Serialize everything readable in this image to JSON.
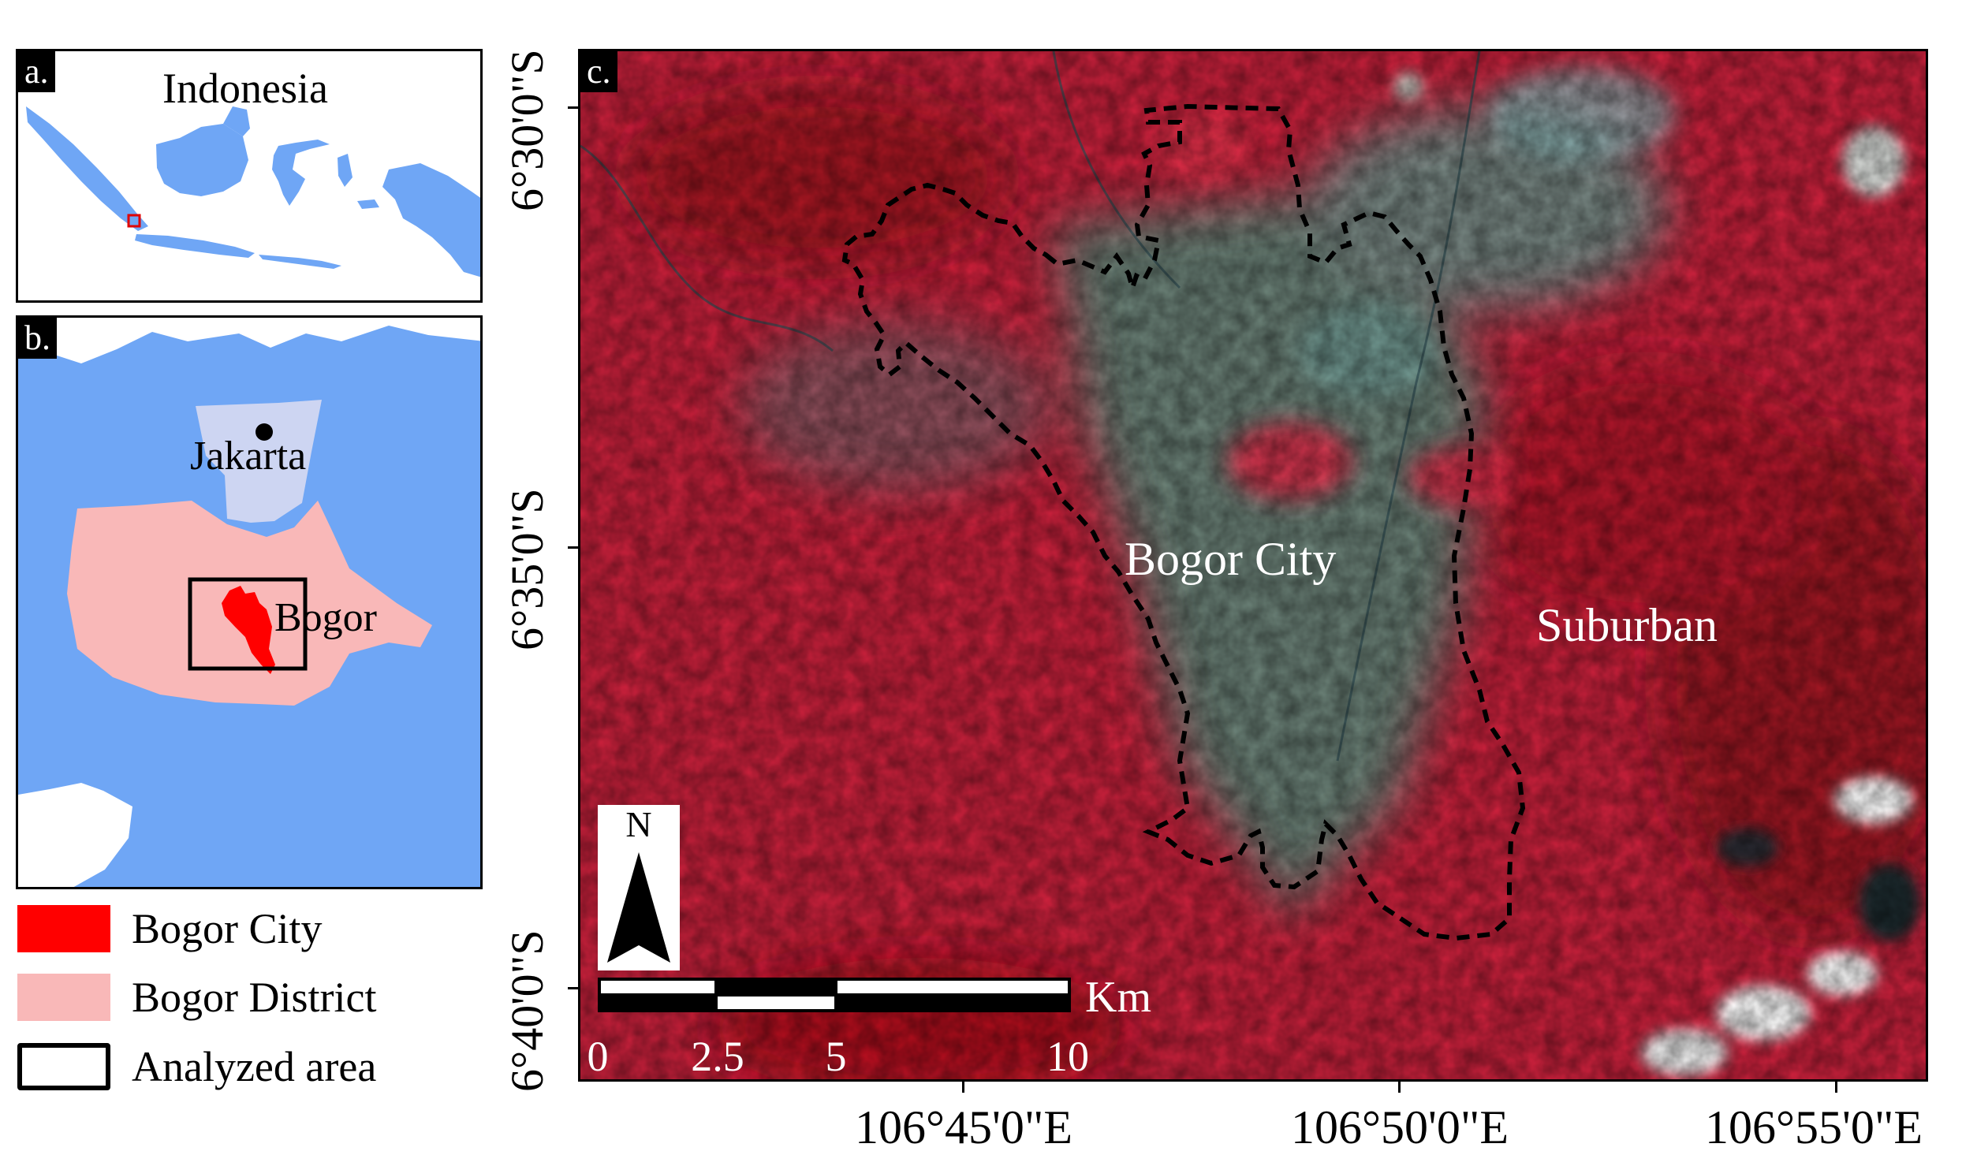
{
  "panel_a": {
    "tag": "a.",
    "title": "Indonesia"
  },
  "panel_b": {
    "tag": "b.",
    "places": {
      "jakarta": "Jakarta",
      "bogor": "Bogor"
    }
  },
  "panel_c": {
    "tag": "c.",
    "labels": {
      "city": "Bogor City",
      "suburban": "Suburban"
    },
    "north_arrow": "N",
    "scale_bar": {
      "unit": "Km",
      "ticks": [
        "0",
        "2.5",
        "5",
        "10"
      ]
    },
    "latitude_labels": [
      "6°30'0\"S",
      "6°35'0\"S",
      "6°40'0\"S"
    ],
    "longitude_labels": [
      "106°45'0\"E",
      "106°50'0\"E",
      "106°55'0\"E"
    ]
  },
  "legend": {
    "items": [
      {
        "label": "Bogor City",
        "color": "#ff0000"
      },
      {
        "label": "Bogor District",
        "color": "#f9b8b8"
      },
      {
        "label": "Analyzed area",
        "color": "#ffffff"
      }
    ]
  },
  "colors": {
    "sea": "#6fa6f5",
    "land": "#ffffff",
    "jakarta": "#cdd5f2",
    "district": "#f9b8b8",
    "city": "#ff0000",
    "imagery_base": "#c8203b",
    "urban": "#5f8a7c",
    "boundary": "#000000"
  }
}
